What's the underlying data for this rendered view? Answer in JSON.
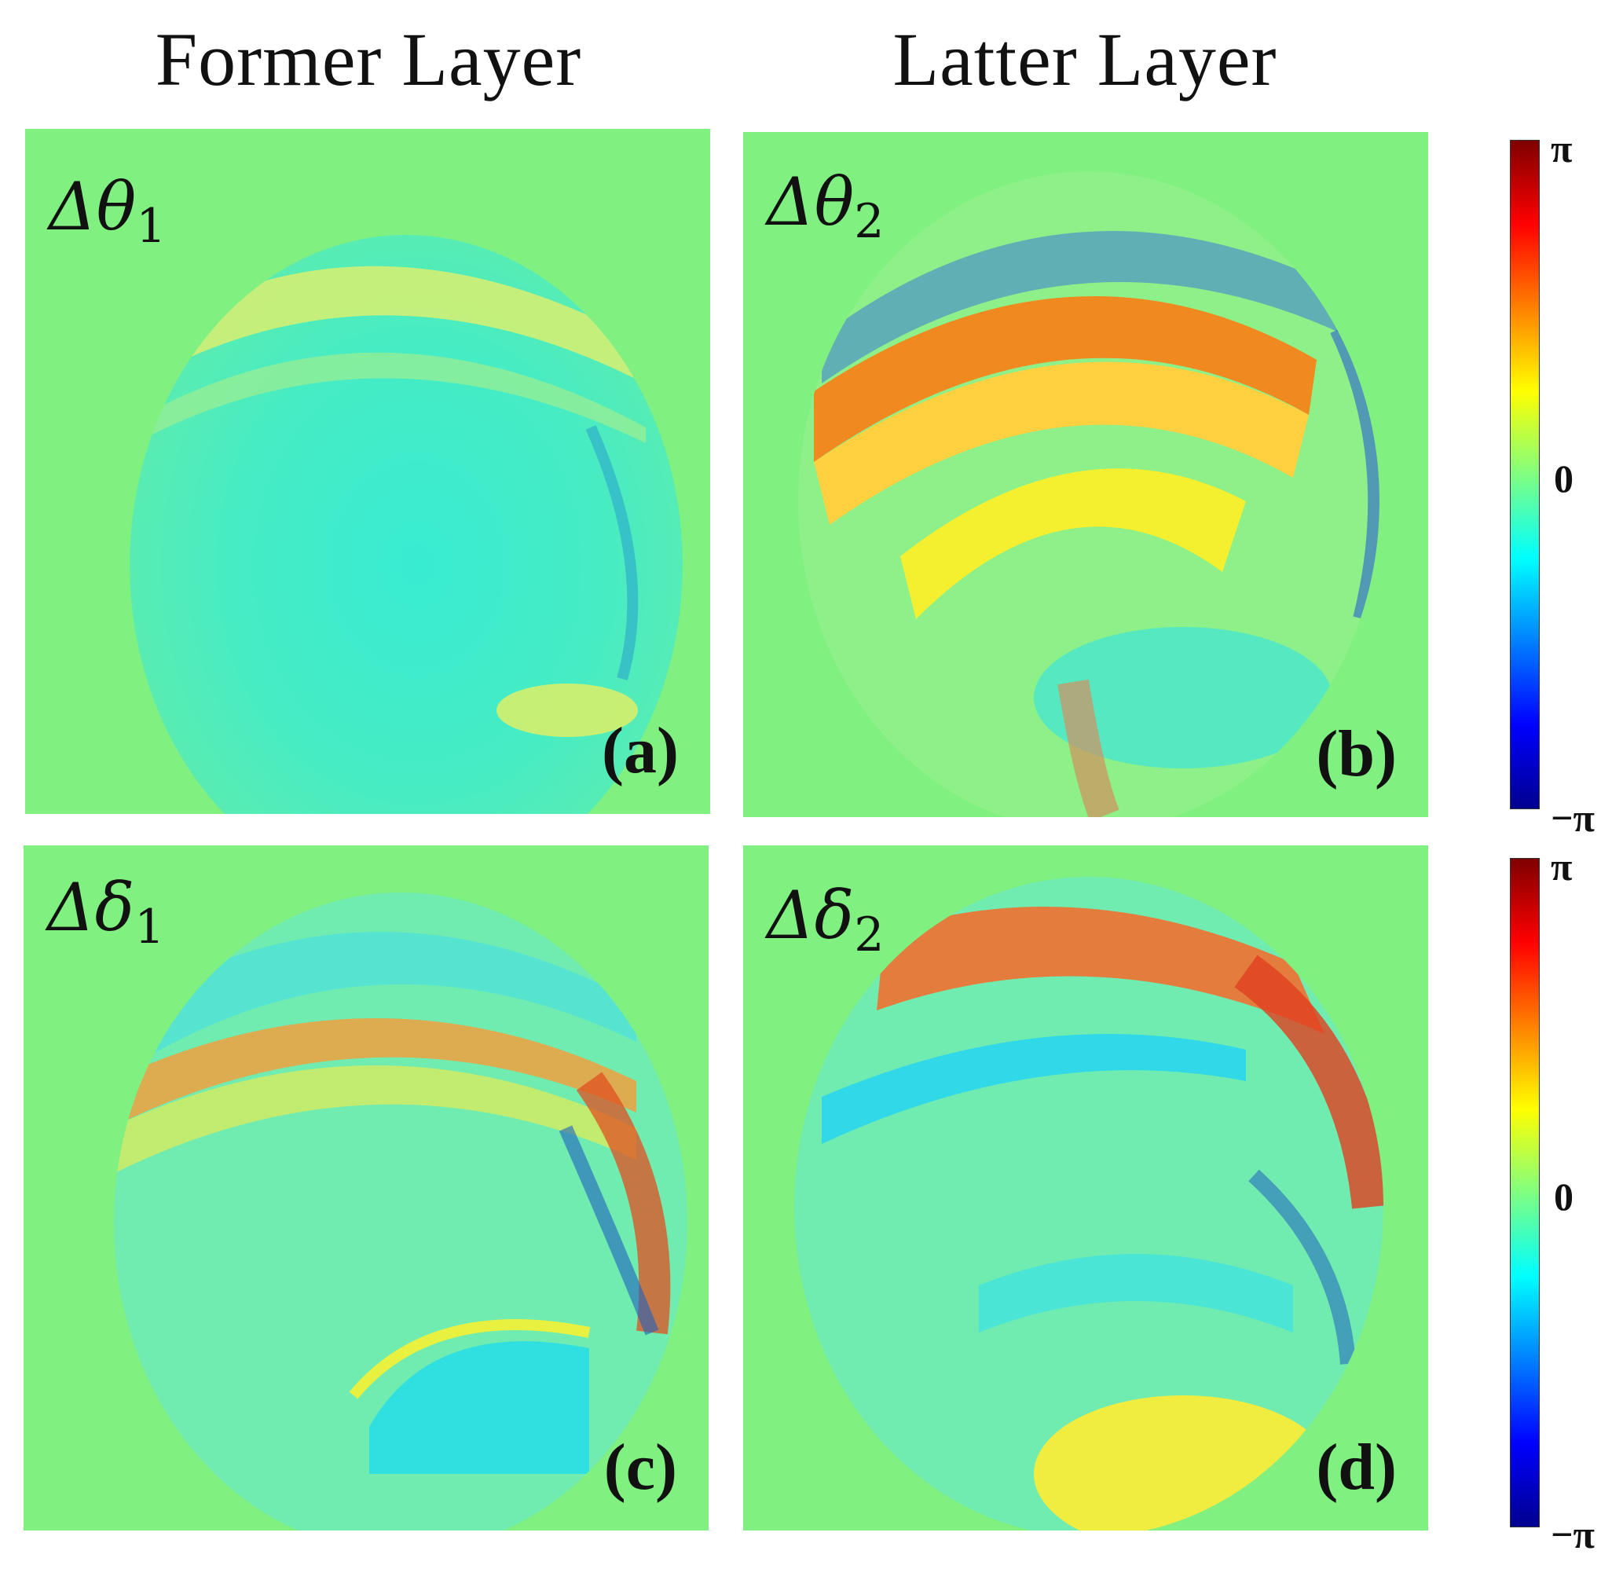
{
  "columns": {
    "left": "Former Layer",
    "right": "Latter Layer"
  },
  "panels": [
    {
      "symbol": "Δθ",
      "sub": "1",
      "tag": "(a)"
    },
    {
      "symbol": "Δθ",
      "sub": "2",
      "tag": "(b)"
    },
    {
      "symbol": "Δδ",
      "sub": "1",
      "tag": "(c)"
    },
    {
      "symbol": "Δδ",
      "sub": "2",
      "tag": "(d)"
    }
  ],
  "colorbars": [
    {
      "top": "π",
      "mid": "0",
      "bottom": "−π"
    },
    {
      "top": "π",
      "mid": "0",
      "bottom": "−π"
    }
  ],
  "colors": {
    "background": "#80f080",
    "colormap": [
      "#7f0000",
      "#ff0000",
      "#ff8000",
      "#ffff00",
      "#80ff80",
      "#00ffff",
      "#0080ff",
      "#0000ff",
      "#00008f"
    ]
  }
}
